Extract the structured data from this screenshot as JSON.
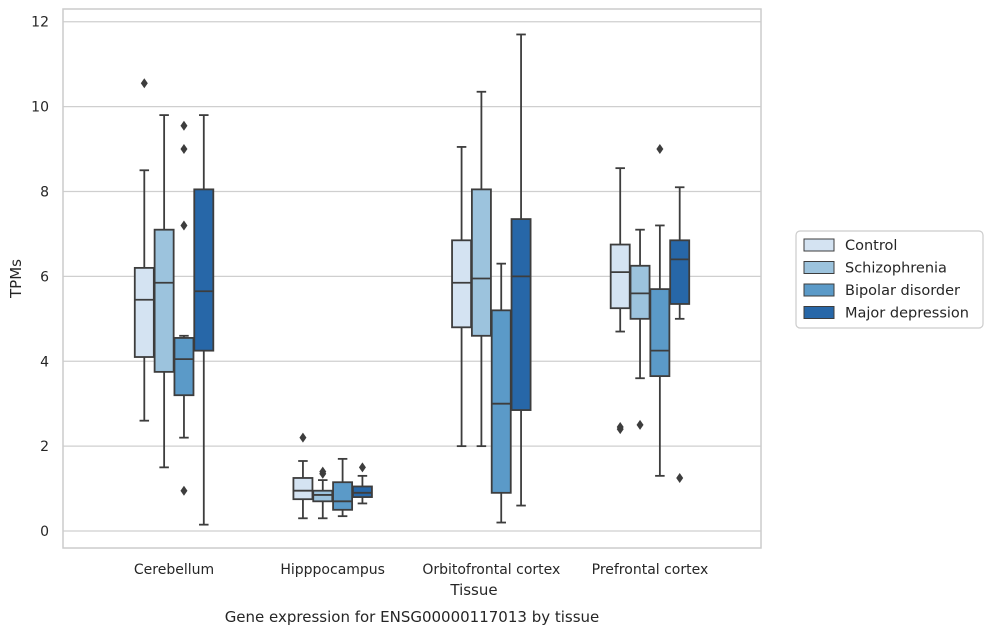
{
  "caption": "Gene expression for ENSG00000117013 by tissue",
  "chart_data": {
    "type": "box",
    "xlabel": "Tissue",
    "ylabel": "TPMs",
    "ylim": [
      -0.4,
      12.3
    ],
    "yticks": [
      0,
      2,
      4,
      6,
      8,
      10,
      12
    ],
    "grid": "horizontal",
    "legend_position": "right",
    "categories": [
      "Cerebellum",
      "Hipppocampus",
      "Orbitofrontal cortex",
      "Prefrontal cortex"
    ],
    "series": [
      {
        "name": "Control",
        "color": "#d4e3f2",
        "boxes": [
          {
            "whisker_low": 2.6,
            "q1": 4.1,
            "median": 5.45,
            "q3": 6.2,
            "whisker_high": 8.5,
            "outliers": [
              10.55
            ]
          },
          {
            "whisker_low": 0.3,
            "q1": 0.75,
            "median": 0.95,
            "q3": 1.25,
            "whisker_high": 1.65,
            "outliers": [
              2.2
            ]
          },
          {
            "whisker_low": 2.0,
            "q1": 4.8,
            "median": 5.85,
            "q3": 6.85,
            "whisker_high": 9.05,
            "outliers": []
          },
          {
            "whisker_low": 4.7,
            "q1": 5.25,
            "median": 6.1,
            "q3": 6.75,
            "whisker_high": 8.55,
            "outliers": [
              2.4,
              2.45
            ]
          }
        ]
      },
      {
        "name": "Schizophrenia",
        "color": "#9cc3dd",
        "boxes": [
          {
            "whisker_low": 1.5,
            "q1": 3.75,
            "median": 5.85,
            "q3": 7.1,
            "whisker_high": 9.8,
            "outliers": []
          },
          {
            "whisker_low": 0.3,
            "q1": 0.7,
            "median": 0.85,
            "q3": 0.95,
            "whisker_high": 1.2,
            "outliers": [
              1.35,
              1.4
            ]
          },
          {
            "whisker_low": 2.0,
            "q1": 4.6,
            "median": 5.95,
            "q3": 8.05,
            "whisker_high": 10.35,
            "outliers": []
          },
          {
            "whisker_low": 3.6,
            "q1": 5.0,
            "median": 5.6,
            "q3": 6.25,
            "whisker_high": 7.1,
            "outliers": [
              2.5
            ]
          }
        ]
      },
      {
        "name": "Bipolar disorder",
        "color": "#5b9ac8",
        "boxes": [
          {
            "whisker_low": 2.2,
            "q1": 3.2,
            "median": 4.05,
            "q3": 4.55,
            "whisker_high": 4.6,
            "outliers": [
              7.2,
              9.0,
              9.55,
              0.95
            ]
          },
          {
            "whisker_low": 0.35,
            "q1": 0.5,
            "median": 0.7,
            "q3": 1.15,
            "whisker_high": 1.7,
            "outliers": []
          },
          {
            "whisker_low": 0.2,
            "q1": 0.9,
            "median": 3.0,
            "q3": 5.2,
            "whisker_high": 6.3,
            "outliers": []
          },
          {
            "whisker_low": 1.3,
            "q1": 3.65,
            "median": 4.25,
            "q3": 5.7,
            "whisker_high": 7.2,
            "outliers": [
              9.0
            ]
          }
        ]
      },
      {
        "name": "Major depression",
        "color": "#2767a8",
        "boxes": [
          {
            "whisker_low": 0.15,
            "q1": 4.25,
            "median": 5.65,
            "q3": 8.05,
            "whisker_high": 9.8,
            "outliers": []
          },
          {
            "whisker_low": 0.65,
            "q1": 0.8,
            "median": 0.9,
            "q3": 1.05,
            "whisker_high": 1.3,
            "outliers": [
              1.5
            ]
          },
          {
            "whisker_low": 0.6,
            "q1": 2.85,
            "median": 6.0,
            "q3": 7.35,
            "whisker_high": 11.7,
            "outliers": []
          },
          {
            "whisker_low": 5.0,
            "q1": 5.35,
            "median": 6.4,
            "q3": 6.85,
            "whisker_high": 8.1,
            "outliers": [
              1.25
            ]
          }
        ]
      }
    ]
  }
}
